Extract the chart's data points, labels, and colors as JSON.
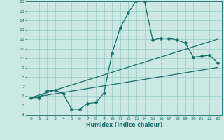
{
  "xlabel": "Humidex (Indice chaleur)",
  "bg_color": "#cce8e4",
  "grid_color": "#99ccc6",
  "line_color": "#1a6e6a",
  "xlim": [
    -0.5,
    23.5
  ],
  "ylim": [
    4,
    16
  ],
  "xticks": [
    0,
    1,
    2,
    3,
    4,
    5,
    6,
    7,
    8,
    9,
    10,
    11,
    12,
    13,
    14,
    15,
    16,
    17,
    18,
    19,
    20,
    21,
    22,
    23
  ],
  "yticks": [
    4,
    5,
    6,
    7,
    8,
    9,
    10,
    11,
    12,
    13,
    14,
    15,
    16
  ],
  "line1_x": [
    0,
    1,
    2,
    3,
    4,
    5,
    6,
    7,
    8,
    9,
    10,
    11,
    12,
    13,
    14,
    15,
    16,
    17,
    18,
    19,
    20,
    21,
    22,
    23
  ],
  "line1_y": [
    5.8,
    5.8,
    6.5,
    6.6,
    6.2,
    4.6,
    4.6,
    5.2,
    5.3,
    6.3,
    10.5,
    13.2,
    14.8,
    16.1,
    16.0,
    11.9,
    12.1,
    12.1,
    11.9,
    11.6,
    10.1,
    10.2,
    10.3,
    9.5
  ],
  "line2_x": [
    0,
    23
  ],
  "line2_y": [
    5.8,
    9.0
  ],
  "line3_x": [
    0,
    23
  ],
  "line3_y": [
    5.8,
    12.0
  ],
  "marker": "D",
  "marker_size": 2.5,
  "linewidth": 0.9
}
